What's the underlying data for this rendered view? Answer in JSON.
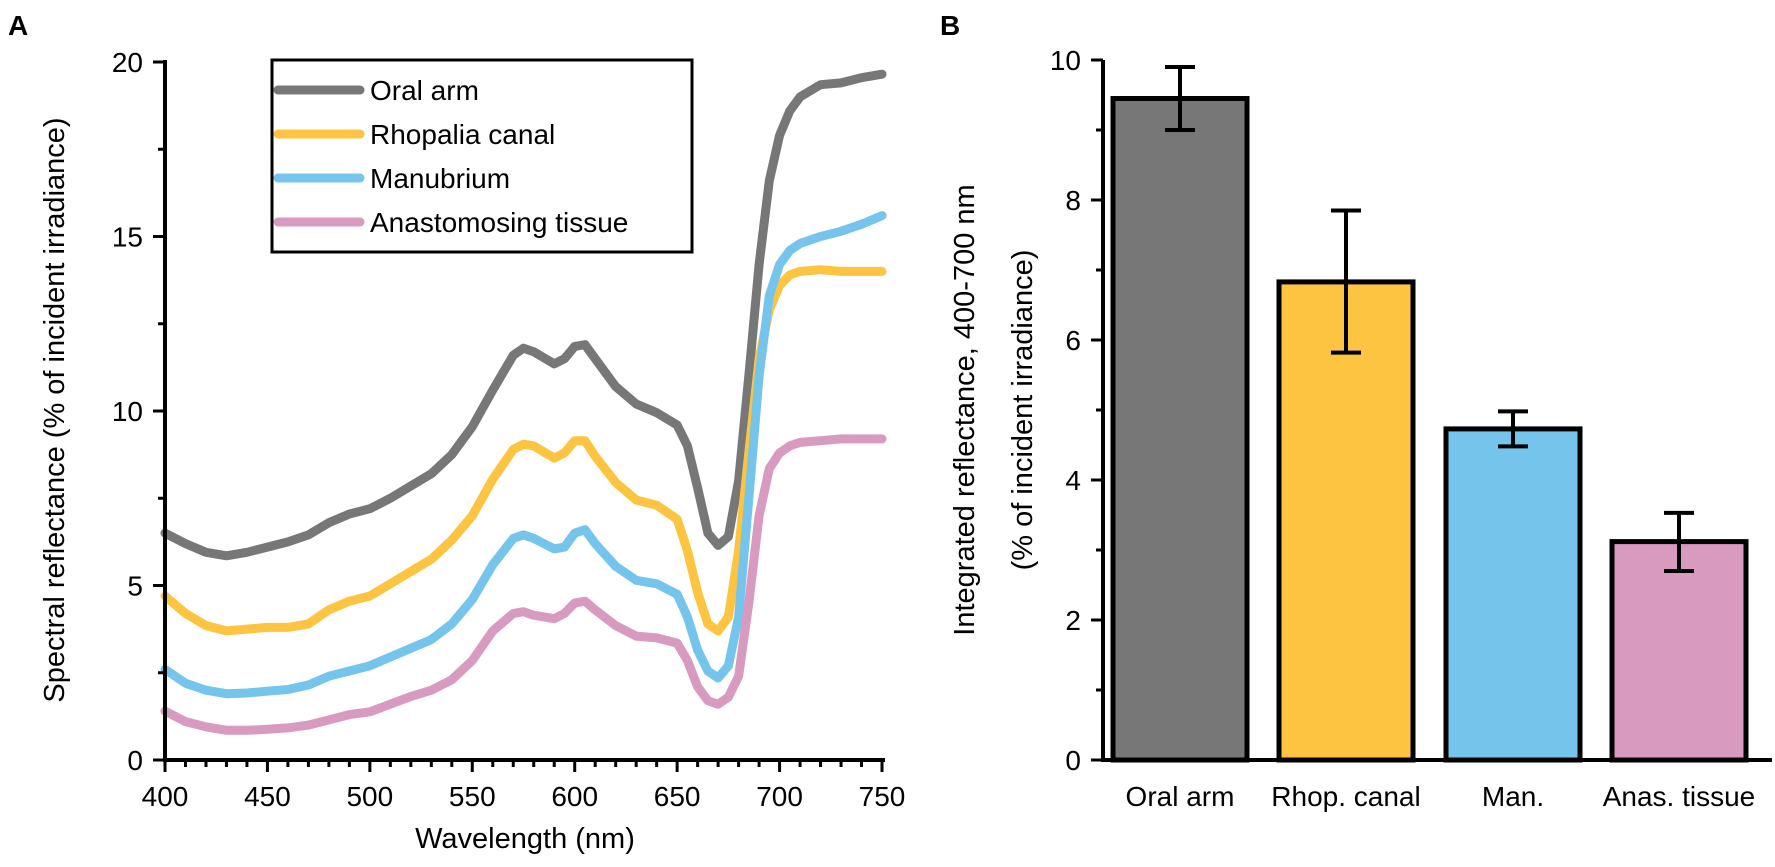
{
  "panels": {
    "a": {
      "label": "A"
    },
    "b": {
      "label": "B"
    }
  },
  "chart_data": [
    {
      "type": "line",
      "panel": "A",
      "title": "",
      "xlabel": "Wavelength (nm)",
      "ylabel": "Spectral reflectance (% of incident irradiance)",
      "xlim": [
        400,
        750
      ],
      "ylim": [
        0,
        20
      ],
      "xticks": [
        400,
        450,
        500,
        550,
        600,
        650,
        700,
        750
      ],
      "xtick_labels": [
        "400",
        "450",
        "500",
        "550",
        "600",
        "650",
        "700",
        "750"
      ],
      "yticks": [
        0,
        5,
        10,
        15,
        20
      ],
      "ytick_labels": [
        "0",
        "5",
        "10",
        "15",
        "20"
      ],
      "grid": false,
      "legend_position": "top-center",
      "x": [
        400,
        410,
        420,
        430,
        440,
        450,
        460,
        470,
        480,
        490,
        500,
        510,
        520,
        530,
        540,
        550,
        560,
        570,
        575,
        580,
        590,
        595,
        600,
        605,
        610,
        620,
        630,
        640,
        650,
        655,
        660,
        665,
        670,
        675,
        680,
        685,
        690,
        695,
        700,
        705,
        710,
        720,
        730,
        740,
        750
      ],
      "series": [
        {
          "name": "Oral arm",
          "color": "#777777",
          "values": [
            6.5,
            6.2,
            5.95,
            5.85,
            5.95,
            6.1,
            6.25,
            6.45,
            6.8,
            7.05,
            7.2,
            7.5,
            7.85,
            8.2,
            8.75,
            9.55,
            10.6,
            11.6,
            11.8,
            11.7,
            11.35,
            11.5,
            11.85,
            11.9,
            11.5,
            10.7,
            10.2,
            9.95,
            9.6,
            9.0,
            7.8,
            6.5,
            6.15,
            6.4,
            8.0,
            11.0,
            14.2,
            16.6,
            17.9,
            18.6,
            19.0,
            19.35,
            19.4,
            19.55,
            19.65
          ]
        },
        {
          "name": "Rhopalia canal",
          "color": "#FDC442",
          "values": [
            4.7,
            4.2,
            3.85,
            3.7,
            3.75,
            3.8,
            3.8,
            3.9,
            4.3,
            4.55,
            4.7,
            5.05,
            5.4,
            5.75,
            6.3,
            7.0,
            8.05,
            8.9,
            9.05,
            9.0,
            8.65,
            8.8,
            9.15,
            9.15,
            8.7,
            7.95,
            7.45,
            7.3,
            6.9,
            6.0,
            4.8,
            3.9,
            3.7,
            4.1,
            6.0,
            8.8,
            11.5,
            12.9,
            13.6,
            13.9,
            14.0,
            14.05,
            14.0,
            14.0,
            14.0
          ]
        },
        {
          "name": "Manubrium",
          "color": "#75C4EC",
          "values": [
            2.6,
            2.2,
            2.0,
            1.9,
            1.92,
            1.97,
            2.02,
            2.15,
            2.4,
            2.55,
            2.7,
            2.95,
            3.2,
            3.45,
            3.9,
            4.6,
            5.6,
            6.35,
            6.45,
            6.35,
            6.05,
            6.1,
            6.5,
            6.6,
            6.2,
            5.55,
            5.15,
            5.05,
            4.75,
            4.1,
            3.15,
            2.55,
            2.35,
            2.7,
            4.1,
            7.5,
            11.0,
            13.3,
            14.2,
            14.6,
            14.8,
            15.0,
            15.15,
            15.35,
            15.6
          ]
        },
        {
          "name": "Anastomosing tissue",
          "color": "#D89ABF",
          "values": [
            1.4,
            1.1,
            0.95,
            0.85,
            0.85,
            0.88,
            0.92,
            1.0,
            1.15,
            1.3,
            1.38,
            1.6,
            1.82,
            2.0,
            2.3,
            2.85,
            3.7,
            4.2,
            4.25,
            4.15,
            4.05,
            4.2,
            4.5,
            4.55,
            4.3,
            3.85,
            3.55,
            3.5,
            3.35,
            2.85,
            2.1,
            1.7,
            1.6,
            1.8,
            2.4,
            4.5,
            7.0,
            8.35,
            8.8,
            9.0,
            9.1,
            9.15,
            9.2,
            9.2,
            9.2
          ]
        }
      ]
    },
    {
      "type": "bar",
      "panel": "B",
      "title": "",
      "xlabel": "",
      "ylabel": "Integrated reflectance, 400-700 nm",
      "ylabel2": "(% of incident irradiance)",
      "ylim": [
        0,
        10
      ],
      "yticks": [
        0,
        2,
        4,
        6,
        8,
        10
      ],
      "ytick_labels": [
        "0",
        "2",
        "4",
        "6",
        "8",
        "10"
      ],
      "grid": false,
      "categories": [
        "Oral arm",
        "Rhop. canal",
        "Man.",
        "Anas. tissue"
      ],
      "values": [
        9.45,
        6.83,
        4.73,
        3.12
      ],
      "error_low": [
        9.0,
        5.82,
        4.48,
        2.7
      ],
      "error_high": [
        9.9,
        7.85,
        4.98,
        3.53
      ],
      "colors": [
        "#777777",
        "#FDC442",
        "#75C4EC",
        "#D89ABF"
      ]
    }
  ]
}
